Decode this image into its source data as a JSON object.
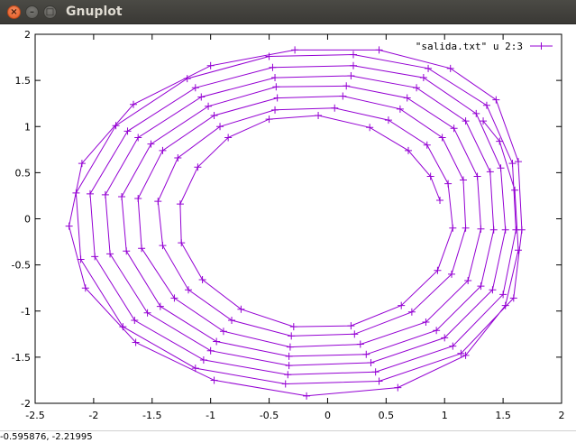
{
  "window": {
    "title": "Gnuplot",
    "close_glyph": "×",
    "minimize_glyph": "–",
    "maximize_glyph": "□"
  },
  "status": {
    "coordinates": "-0.595876, -2.21995"
  },
  "chart_data": {
    "type": "line",
    "title": "",
    "xlabel": "",
    "ylabel": "",
    "xlim": [
      -2.5,
      2
    ],
    "ylim": [
      -2,
      2
    ],
    "xticks": [
      {
        "value": -2.5,
        "label": "-2.5"
      },
      {
        "value": -2,
        "label": "-2"
      },
      {
        "value": -1.5,
        "label": "-1.5"
      },
      {
        "value": -1,
        "label": "-1"
      },
      {
        "value": -0.5,
        "label": "-0.5"
      },
      {
        "value": 0,
        "label": "0"
      },
      {
        "value": 0.5,
        "label": "0.5"
      },
      {
        "value": 1,
        "label": "1"
      },
      {
        "value": 1.5,
        "label": "1.5"
      },
      {
        "value": 2,
        "label": "2"
      }
    ],
    "yticks": [
      {
        "value": -2,
        "label": "-2"
      },
      {
        "value": -1.5,
        "label": "-1.5"
      },
      {
        "value": -1,
        "label": "-1"
      },
      {
        "value": -0.5,
        "label": "-0.5"
      },
      {
        "value": 0,
        "label": "0"
      },
      {
        "value": 0.5,
        "label": "0.5"
      },
      {
        "value": 1,
        "label": "1"
      },
      {
        "value": 1.5,
        "label": "1.5"
      },
      {
        "value": 2,
        "label": "2"
      }
    ],
    "grid": false,
    "legend_position": "top-right",
    "series": [
      {
        "name": "\"salida.txt\" u 2:3",
        "color": "#9400d3",
        "marker": "plus",
        "style": "linespoints",
        "points": [
          [
            0.96,
            0.2
          ],
          [
            0.88,
            0.46
          ],
          [
            0.69,
            0.74
          ],
          [
            0.36,
            0.99
          ],
          [
            -0.08,
            1.12
          ],
          [
            -0.5,
            1.08
          ],
          [
            -0.85,
            0.88
          ],
          [
            -1.11,
            0.56
          ],
          [
            -1.26,
            0.16
          ],
          [
            -1.25,
            -0.26
          ],
          [
            -1.07,
            -0.66
          ],
          [
            -0.74,
            -0.98
          ],
          [
            -0.29,
            -1.17
          ],
          [
            0.2,
            -1.16
          ],
          [
            0.63,
            -0.94
          ],
          [
            0.94,
            -0.56
          ],
          [
            1.07,
            -0.1
          ],
          [
            1.03,
            0.38
          ],
          [
            0.85,
            0.8
          ],
          [
            0.52,
            1.07
          ],
          [
            0.06,
            1.2
          ],
          [
            -0.45,
            1.18
          ],
          [
            -0.92,
            1
          ],
          [
            -1.28,
            0.66
          ],
          [
            -1.45,
            0.19
          ],
          [
            -1.41,
            -0.29
          ],
          [
            -1.19,
            -0.77
          ],
          [
            -0.82,
            -1.1
          ],
          [
            -0.31,
            -1.27
          ],
          [
            0.23,
            -1.25
          ],
          [
            0.72,
            -1.01
          ],
          [
            1.06,
            -0.6
          ],
          [
            1.18,
            -0.1
          ],
          [
            1.16,
            0.42
          ],
          [
            0.98,
            0.88
          ],
          [
            0.62,
            1.19
          ],
          [
            0.13,
            1.33
          ],
          [
            -0.43,
            1.31
          ],
          [
            -0.97,
            1.12
          ],
          [
            -1.41,
            0.74
          ],
          [
            -1.62,
            0.22
          ],
          [
            -1.59,
            -0.32
          ],
          [
            -1.31,
            -0.86
          ],
          [
            -0.89,
            -1.22
          ],
          [
            -0.32,
            -1.39
          ],
          [
            0.28,
            -1.36
          ],
          [
            0.84,
            -1.12
          ],
          [
            1.2,
            -0.67
          ],
          [
            1.31,
            -0.11
          ],
          [
            1.28,
            0.46
          ],
          [
            1.08,
            0.98
          ],
          [
            0.68,
            1.31
          ],
          [
            0.16,
            1.44
          ],
          [
            -0.44,
            1.43
          ],
          [
            -1.02,
            1.22
          ],
          [
            -1.51,
            0.81
          ],
          [
            -1.76,
            0.24
          ],
          [
            -1.72,
            -0.35
          ],
          [
            -1.43,
            -0.95
          ],
          [
            -0.95,
            -1.33
          ],
          [
            -0.33,
            -1.49
          ],
          [
            0.33,
            -1.47
          ],
          [
            0.93,
            -1.21
          ],
          [
            1.31,
            -0.73
          ],
          [
            1.42,
            -0.12
          ],
          [
            1.39,
            0.51
          ],
          [
            1.18,
            1.06
          ],
          [
            0.76,
            1.42
          ],
          [
            0.2,
            1.55
          ],
          [
            -0.45,
            1.53
          ],
          [
            -1.08,
            1.32
          ],
          [
            -1.62,
            0.88
          ],
          [
            -1.9,
            0.26
          ],
          [
            -1.86,
            -0.38
          ],
          [
            -1.54,
            -1.02
          ],
          [
            -1,
            -1.43
          ],
          [
            -0.33,
            -1.59
          ],
          [
            0.37,
            -1.56
          ],
          [
            1,
            -1.29
          ],
          [
            1.41,
            -0.77
          ],
          [
            1.52,
            -0.12
          ],
          [
            1.48,
            0.55
          ],
          [
            1.27,
            1.14
          ],
          [
            0.82,
            1.53
          ],
          [
            0.22,
            1.66
          ],
          [
            -0.47,
            1.64
          ],
          [
            -1.13,
            1.42
          ],
          [
            -1.71,
            0.95
          ],
          [
            -2.03,
            0.27
          ],
          [
            -1.99,
            -0.41
          ],
          [
            -1.65,
            -1.1
          ],
          [
            -1.06,
            -1.53
          ],
          [
            -0.34,
            -1.69
          ],
          [
            0.41,
            -1.66
          ],
          [
            1.07,
            -1.38
          ],
          [
            1.5,
            -0.82
          ],
          [
            1.61,
            -0.12
          ],
          [
            1.58,
            0.6
          ],
          [
            1.36,
            1.23
          ],
          [
            0.86,
            1.63
          ],
          [
            0.22,
            1.78
          ],
          [
            -0.5,
            1.76
          ],
          [
            -1.2,
            1.52
          ],
          [
            -1.81,
            1.01
          ],
          [
            -2.15,
            0.28
          ],
          [
            -2.11,
            -0.44
          ],
          [
            -1.75,
            -1.17
          ],
          [
            -1.13,
            -1.62
          ],
          [
            -0.36,
            -1.79
          ],
          [
            0.44,
            -1.76
          ],
          [
            1.14,
            -1.46
          ],
          [
            1.59,
            -0.86
          ],
          [
            1.66,
            -0.12
          ],
          [
            1.63,
            0.62
          ],
          [
            1.44,
            1.29
          ],
          [
            1.05,
            1.63
          ],
          [
            0.44,
            1.83
          ],
          [
            -0.28,
            1.83
          ],
          [
            -1,
            1.66
          ],
          [
            -1.66,
            1.24
          ],
          [
            -2.1,
            0.6
          ],
          [
            -2.21,
            -0.08
          ],
          [
            -2.07,
            -0.75
          ],
          [
            -1.64,
            -1.34
          ],
          [
            -0.97,
            -1.75
          ],
          [
            -0.18,
            -1.92
          ],
          [
            0.6,
            -1.83
          ],
          [
            1.18,
            -1.48
          ],
          [
            1.52,
            -0.94
          ],
          [
            1.63,
            -0.34
          ],
          [
            1.6,
            0.31
          ],
          [
            1.47,
            0.84
          ],
          [
            1.33,
            1.06
          ]
        ]
      }
    ]
  }
}
